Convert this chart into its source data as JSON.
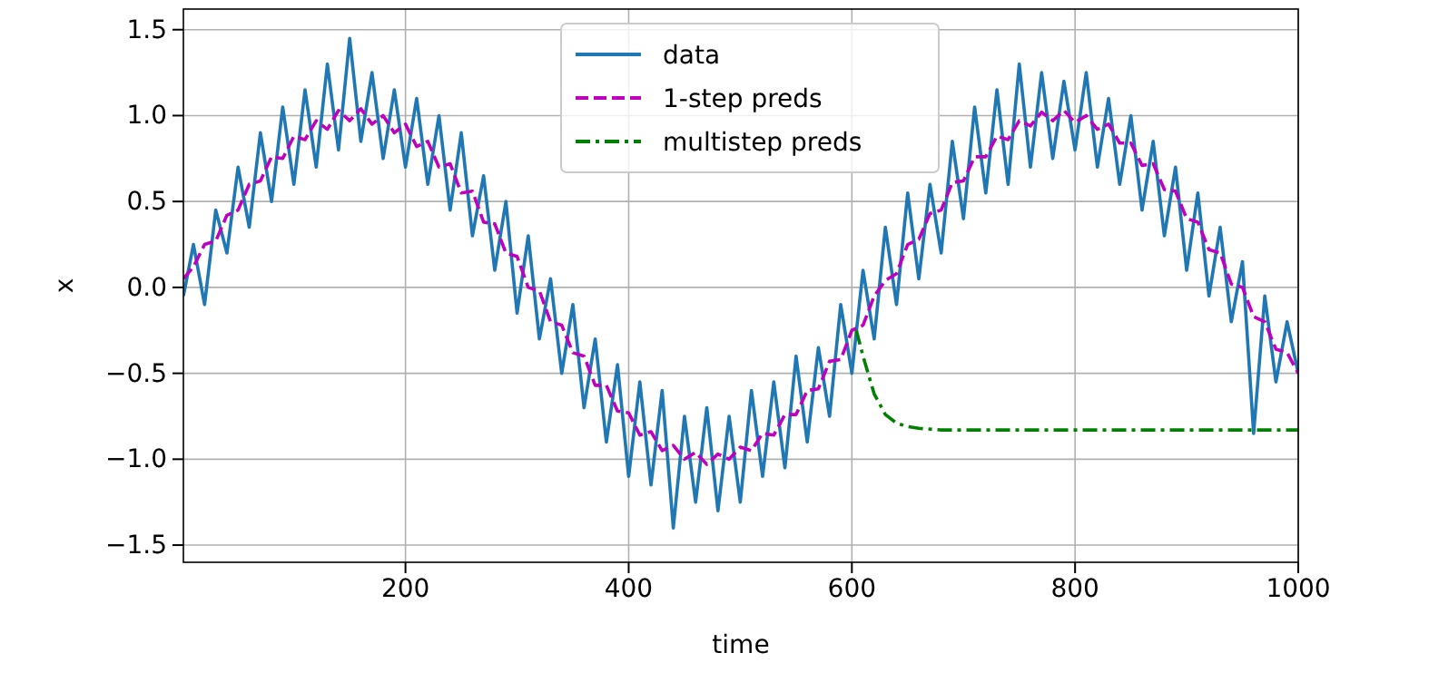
{
  "chart_data": {
    "type": "line",
    "xlabel": "time",
    "ylabel": "x",
    "x": [
      1,
      10,
      20,
      30,
      40,
      50,
      60,
      70,
      80,
      90,
      100,
      110,
      120,
      130,
      140,
      150,
      160,
      170,
      180,
      190,
      200,
      210,
      220,
      230,
      240,
      250,
      260,
      270,
      280,
      290,
      300,
      310,
      320,
      330,
      340,
      350,
      360,
      370,
      380,
      390,
      400,
      410,
      420,
      430,
      440,
      450,
      460,
      470,
      480,
      490,
      500,
      510,
      520,
      530,
      540,
      550,
      560,
      570,
      580,
      590,
      600,
      610,
      620,
      630,
      640,
      650,
      660,
      670,
      680,
      690,
      700,
      710,
      720,
      730,
      740,
      750,
      760,
      770,
      780,
      790,
      800,
      810,
      820,
      830,
      840,
      850,
      860,
      870,
      880,
      890,
      900,
      910,
      920,
      930,
      940,
      950,
      960,
      970,
      980,
      990,
      1000
    ],
    "series": [
      {
        "name": "data",
        "color": "#1f77b4",
        "line_style": "solid",
        "values": [
          -0.05,
          0.25,
          -0.1,
          0.45,
          0.2,
          0.7,
          0.35,
          0.9,
          0.5,
          1.05,
          0.6,
          1.15,
          0.7,
          1.3,
          0.8,
          1.45,
          0.85,
          1.25,
          0.75,
          1.15,
          0.7,
          1.1,
          0.6,
          1.0,
          0.45,
          0.9,
          0.3,
          0.65,
          0.1,
          0.5,
          -0.15,
          0.3,
          -0.3,
          0.05,
          -0.5,
          -0.1,
          -0.7,
          -0.3,
          -0.9,
          -0.45,
          -1.1,
          -0.55,
          -1.15,
          -0.6,
          -1.4,
          -0.75,
          -1.25,
          -0.7,
          -1.3,
          -0.75,
          -1.25,
          -0.6,
          -1.1,
          -0.55,
          -1.05,
          -0.4,
          -0.9,
          -0.35,
          -0.75,
          -0.1,
          -0.5,
          0.1,
          -0.3,
          0.35,
          -0.1,
          0.55,
          0.05,
          0.6,
          0.2,
          0.85,
          0.4,
          1.05,
          0.55,
          1.15,
          0.6,
          1.3,
          0.7,
          1.25,
          0.75,
          1.2,
          0.8,
          1.25,
          0.7,
          1.1,
          0.6,
          1.0,
          0.45,
          0.85,
          0.3,
          0.7,
          0.1,
          0.55,
          -0.05,
          0.35,
          -0.2,
          0.15,
          -0.85,
          -0.05,
          -0.55,
          -0.2,
          -0.5
        ]
      },
      {
        "name": "1-step preds",
        "color": "#bf00bf",
        "line_style": "dashed",
        "values": [
          0.05,
          0.12,
          0.25,
          0.27,
          0.42,
          0.45,
          0.6,
          0.62,
          0.76,
          0.75,
          0.88,
          0.86,
          0.97,
          0.92,
          1.03,
          0.97,
          1.04,
          0.95,
          1.0,
          0.9,
          0.95,
          0.82,
          0.85,
          0.7,
          0.72,
          0.55,
          0.56,
          0.38,
          0.37,
          0.2,
          0.18,
          0.0,
          -0.02,
          -0.2,
          -0.22,
          -0.38,
          -0.4,
          -0.57,
          -0.57,
          -0.72,
          -0.73,
          -0.86,
          -0.84,
          -0.95,
          -0.92,
          -1.0,
          -0.96,
          -1.03,
          -0.97,
          -1.0,
          -0.93,
          -0.95,
          -0.85,
          -0.86,
          -0.74,
          -0.74,
          -0.6,
          -0.59,
          -0.43,
          -0.42,
          -0.25,
          -0.22,
          -0.05,
          0.04,
          0.08,
          0.25,
          0.28,
          0.43,
          0.45,
          0.61,
          0.62,
          0.76,
          0.76,
          0.88,
          0.86,
          0.97,
          0.94,
          1.02,
          0.97,
          1.03,
          0.96,
          1.0,
          0.92,
          0.95,
          0.84,
          0.84,
          0.71,
          0.72,
          0.57,
          0.56,
          0.4,
          0.38,
          0.22,
          0.2,
          0.02,
          0.0,
          -0.17,
          -0.2,
          -0.36,
          -0.38,
          -0.5
        ]
      },
      {
        "name": "multistep preds",
        "color": "#008000",
        "line_style": "dashdot",
        "x": [
          604,
          610,
          620,
          630,
          640,
          650,
          660,
          680,
          700,
          800,
          900,
          1000
        ],
        "values": [
          -0.25,
          -0.4,
          -0.62,
          -0.74,
          -0.79,
          -0.81,
          -0.82,
          -0.83,
          -0.83,
          -0.83,
          -0.83,
          -0.83
        ]
      }
    ],
    "xlim": [
      1,
      1000
    ],
    "xticks": [
      200,
      400,
      600,
      800,
      1000
    ],
    "ylim": [
      -1.6,
      1.62
    ],
    "yticks": [
      {
        "value": -1.5,
        "label": "−1.5"
      },
      {
        "value": -1,
        "label": "−1.0"
      },
      {
        "value": -0.5,
        "label": "−0.5"
      },
      {
        "value": 0,
        "label": "0.0"
      },
      {
        "value": 0.5,
        "label": "0.5"
      },
      {
        "value": 1,
        "label": "1.0"
      },
      {
        "value": 1.5,
        "label": "1.5"
      }
    ],
    "grid": true,
    "legend": "top",
    "marker": "none"
  }
}
